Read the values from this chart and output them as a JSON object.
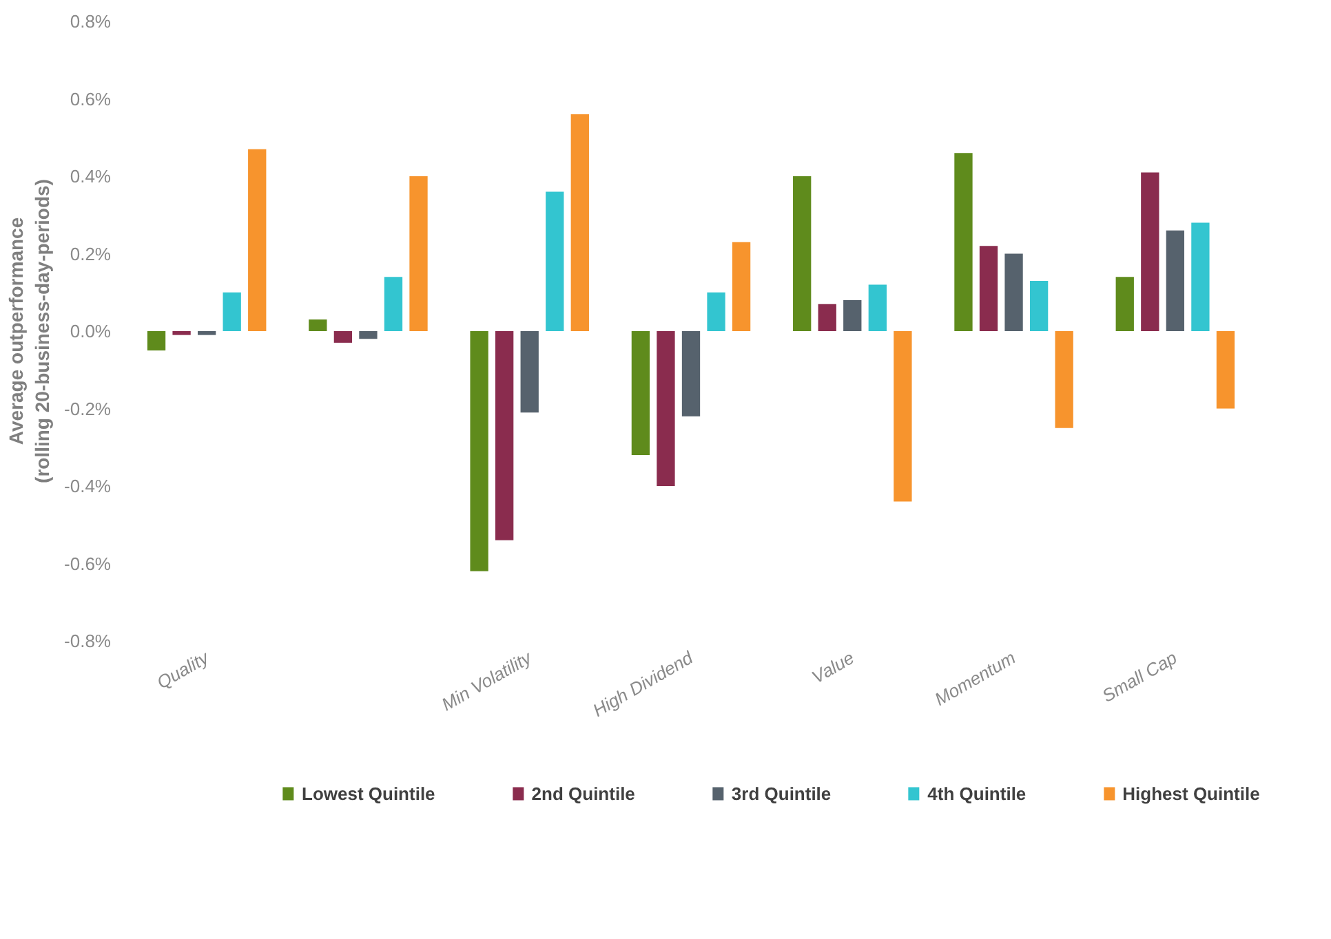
{
  "chart_data": {
    "type": "bar",
    "ylabel": "Average outperformance\n(rolling 20-business-day-periods)",
    "categories": [
      "Quality",
      null,
      "Min Volatility",
      "High Dividend",
      "Value",
      "Momentum",
      "Small Cap"
    ],
    "series": [
      {
        "name": "Lowest Quintile",
        "color": "#5f8b1c",
        "values": [
          -0.05,
          0.03,
          -0.62,
          -0.32,
          0.4,
          0.46,
          0.14
        ]
      },
      {
        "name": "2nd Quintile",
        "color": "#8a2c4e",
        "values": [
          -0.01,
          -0.03,
          -0.54,
          -0.4,
          0.07,
          0.22,
          0.41
        ]
      },
      {
        "name": "3rd Quintile",
        "color": "#56626d",
        "values": [
          -0.01,
          -0.02,
          -0.21,
          -0.22,
          0.08,
          0.2,
          0.26
        ]
      },
      {
        "name": "4th Quintile",
        "color": "#33c5d0",
        "values": [
          0.1,
          0.14,
          0.36,
          0.1,
          0.12,
          0.13,
          0.28
        ]
      },
      {
        "name": "Highest Quintile",
        "color": "#f7942d",
        "values": [
          0.47,
          0.4,
          0.56,
          0.23,
          -0.44,
          -0.25,
          -0.2
        ]
      }
    ],
    "ylim": [
      -0.8,
      0.8
    ],
    "yticks": [
      {
        "value": -0.8,
        "label": "-0.8%"
      },
      {
        "value": -0.6,
        "label": "-0.6%"
      },
      {
        "value": -0.4,
        "label": "-0.4%"
      },
      {
        "value": -0.2,
        "label": "-0.2%"
      },
      {
        "value": 0.0,
        "label": "0.0%"
      },
      {
        "value": 0.2,
        "label": "0.2%"
      },
      {
        "value": 0.4,
        "label": "0.4%"
      },
      {
        "value": 0.6,
        "label": "0.6%"
      },
      {
        "value": 0.8,
        "label": "0.8%"
      }
    ],
    "grid": false,
    "legend": "bottom"
  }
}
